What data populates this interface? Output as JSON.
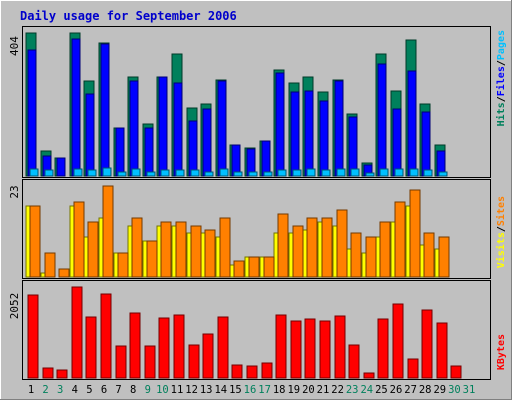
{
  "chart_data": {
    "type": "bar",
    "title": "Daily usage for September 2006",
    "categories": [
      "1",
      "2",
      "3",
      "4",
      "5",
      "6",
      "7",
      "8",
      "9",
      "10",
      "11",
      "12",
      "13",
      "14",
      "15",
      "16",
      "17",
      "18",
      "19",
      "20",
      "21",
      "22",
      "23",
      "24",
      "25",
      "26",
      "27",
      "28",
      "29",
      "30",
      "31"
    ],
    "weekend_days": [
      "2",
      "3",
      "9",
      "10",
      "16",
      "17",
      "23",
      "24",
      "30",
      "31"
    ],
    "panels": [
      {
        "name": "hits-files-pages",
        "ymax_label": "404",
        "ylim": [
          0,
          404
        ],
        "legend": [
          {
            "text": "Hits",
            "color": "#00805c"
          },
          {
            "text": "Files",
            "color": "#0000ff"
          },
          {
            "text": "Pages",
            "color": "#00c0ff"
          }
        ],
        "series": [
          {
            "name": "Hits",
            "color": "#00805c",
            "values": [
              404,
              72,
              52,
              404,
              267,
              376,
              136,
              280,
              148,
              280,
              344,
              192,
              204,
              272,
              88,
              80,
              100,
              300,
              264,
              280,
              236,
              272,
              176,
              36,
              344,
              240,
              384,
              204,
              88,
              0,
              0
            ]
          },
          {
            "name": "Files",
            "color": "#0000ff",
            "values": [
              356,
              56,
              52,
              388,
              232,
              372,
              136,
              268,
              136,
              280,
              264,
              156,
              188,
              268,
              88,
              76,
              100,
              292,
              236,
              240,
              212,
              268,
              168,
              32,
              316,
              188,
              296,
              180,
              72,
              0,
              0
            ]
          },
          {
            "name": "Pages",
            "color": "#00c0ff",
            "values": [
              20,
              16,
              0,
              20,
              16,
              24,
              12,
              20,
              12,
              16,
              16,
              16,
              12,
              20,
              12,
              12,
              12,
              16,
              16,
              20,
              16,
              20,
              20,
              8,
              20,
              20,
              20,
              16,
              12,
              0,
              0
            ]
          }
        ]
      },
      {
        "name": "visits-sites",
        "ymax_label": "23",
        "ylim": [
          0,
          23
        ],
        "legend": [
          {
            "text": "Visits",
            "color": "#ffff00"
          },
          {
            "text": "Sites",
            "color": "#ff8000"
          }
        ],
        "series": [
          {
            "name": "Visits",
            "color": "#ffff00",
            "values": [
              18,
              1,
              0,
              18,
              10,
              15,
              6,
              13,
              9,
              13,
              13,
              11,
              11,
              10,
              3,
              5,
              5,
              11,
              11,
              12,
              14,
              13,
              7,
              6,
              10,
              14,
              18,
              8,
              7,
              0,
              0
            ]
          },
          {
            "name": "Sites",
            "color": "#ff8000",
            "values": [
              18,
              6,
              2,
              19,
              14,
              23,
              6,
              15,
              9,
              14,
              14,
              13,
              12,
              15,
              4,
              5,
              5,
              16,
              13,
              15,
              15,
              17,
              11,
              10,
              14,
              19,
              22,
              11,
              10,
              0,
              0
            ]
          }
        ]
      },
      {
        "name": "kbytes",
        "ymax_label": "2052",
        "ylim": [
          0,
          2052
        ],
        "legend": [
          {
            "text": "KBytes",
            "color": "#ff0000"
          }
        ],
        "series": [
          {
            "name": "KBytes",
            "color": "#ff0000",
            "values": [
              1872,
              230,
              180,
              2052,
              1370,
              1900,
              720,
              1460,
              720,
              1360,
              1420,
              740,
              1000,
              1380,
              300,
              280,
              340,
              1420,
              1280,
              1340,
              1280,
              1390,
              740,
              120,
              1320,
              1670,
              420,
              1540,
              1250,
              260,
              0
            ]
          }
        ]
      }
    ]
  }
}
